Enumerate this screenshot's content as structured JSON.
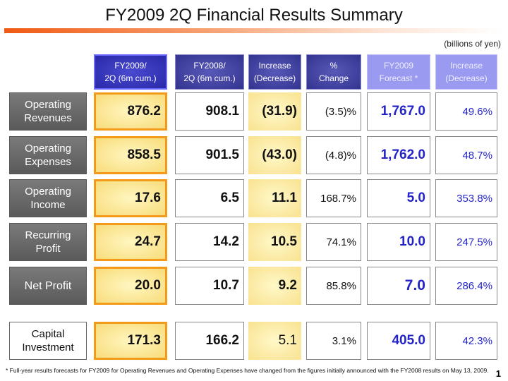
{
  "title": "FY2009 2Q Financial Results Summary",
  "unit": "(billions of yen)",
  "headers": [
    {
      "l1": "FY2009/",
      "l2": "2Q (6m cum.)"
    },
    {
      "l1": "FY2008/",
      "l2": "2Q (6m cum.)"
    },
    {
      "l1": "Increase",
      "l2": "(Decrease)"
    },
    {
      "l1": "%",
      "l2": "Change"
    },
    {
      "l1": "FY2009",
      "l2": "Forecast *"
    },
    {
      "l1": "Increase",
      "l2": "(Decrease)"
    }
  ],
  "rows": [
    {
      "l1": "Operating",
      "l2": "Revenues",
      "v": [
        "876.2",
        "908.1",
        "(31.9)",
        "(3.5)%",
        "1,767.0",
        "49.6%"
      ]
    },
    {
      "l1": "Operating",
      "l2": "Expenses",
      "v": [
        "858.5",
        "901.5",
        "(43.0)",
        "(4.8)%",
        "1,762.0",
        "48.7%"
      ]
    },
    {
      "l1": "Operating",
      "l2": "Income",
      "v": [
        "17.6",
        "6.5",
        "11.1",
        "168.7%",
        "5.0",
        "353.8%"
      ]
    },
    {
      "l1": "Recurring",
      "l2": "Profit",
      "v": [
        "24.7",
        "14.2",
        "10.5",
        "74.1%",
        "10.0",
        "247.5%"
      ]
    },
    {
      "l1": "Net Profit",
      "l2": "",
      "v": [
        "20.0",
        "10.7",
        "9.2",
        "85.8%",
        "7.0",
        "286.4%"
      ]
    },
    {
      "l1": "Capital",
      "l2": "Investment",
      "v": [
        "171.3",
        "166.2",
        "5.1",
        "3.1%",
        "405.0",
        "42.3%"
      ]
    }
  ],
  "footnote": "* Full-year results forecasts for FY2009 for Operating Revenues and Operating Expenses have changed from the figures initially announced with the FY2008 results on May 13, 2009.",
  "page_number": "1",
  "colors": {
    "accent_orange": "#f05a14",
    "header_blue": "#33338f",
    "forecast_blue": "#9a9af0",
    "value_blue": "#2323c8"
  }
}
